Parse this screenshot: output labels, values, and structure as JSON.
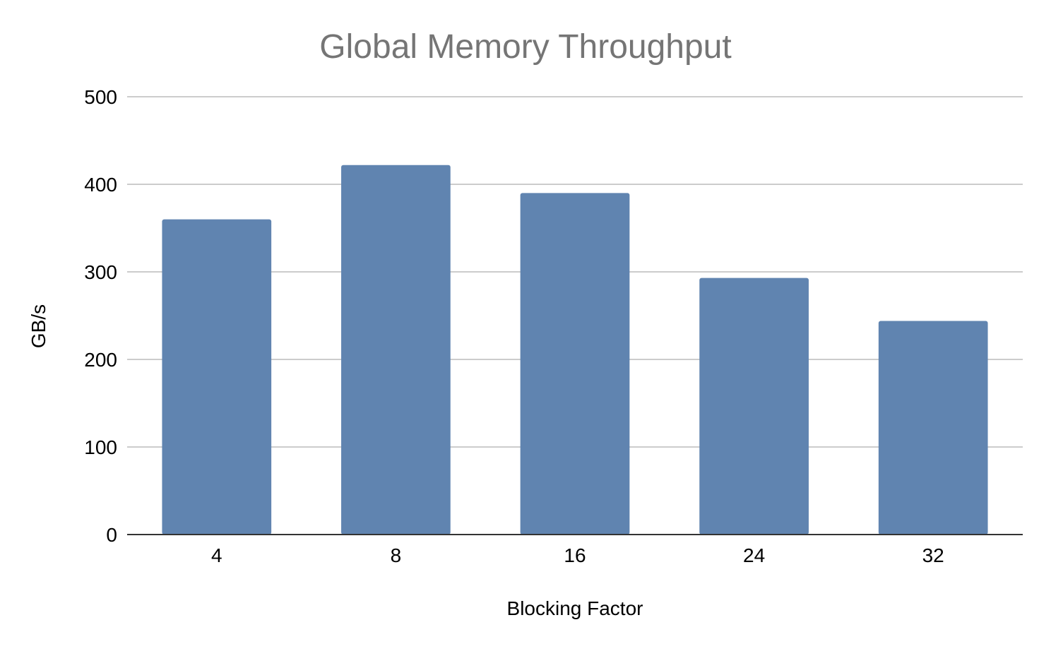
{
  "chart_data": {
    "type": "bar",
    "title": "Global Memory Throughput",
    "xlabel": "Blocking Factor",
    "ylabel": "GB/s",
    "categories": [
      "4",
      "8",
      "16",
      "24",
      "32"
    ],
    "values": [
      360,
      422,
      390,
      293,
      244
    ],
    "ylim": [
      0,
      500
    ],
    "yticks": [
      0,
      100,
      200,
      300,
      400,
      500
    ],
    "ytick_labels": [
      "0",
      "100",
      "200",
      "300",
      "400",
      "500"
    ],
    "grid": true,
    "legend": "none",
    "colors": {
      "bar": "#6084b0",
      "grid": "#cccccc",
      "axis": "#333333",
      "title": "#757575",
      "text": "#000000"
    }
  }
}
